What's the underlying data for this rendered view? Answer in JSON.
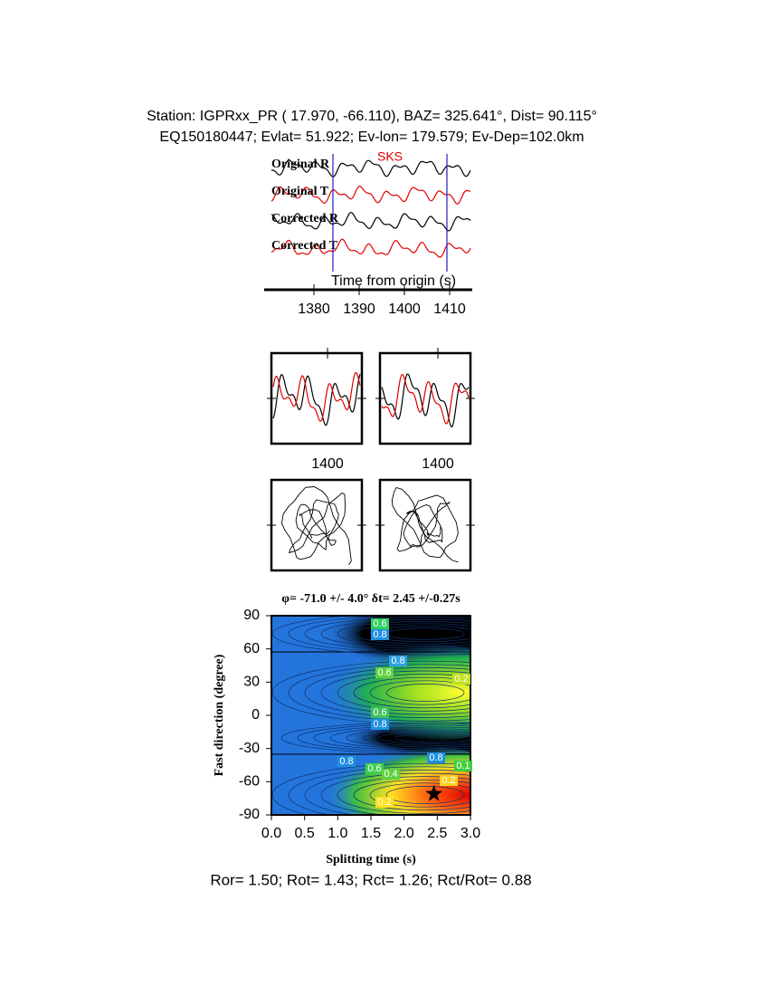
{
  "header": {
    "line1": "Station: IGPRxx_PR (  17.970,  -66.110), BAZ=  325.641°, Dist=   90.115°",
    "line2": "EQ150180447; Evlat=  51.922; Ev-lon= 179.579; Ev-Dep=102.0km"
  },
  "chart_data": [
    {
      "type": "waveform",
      "phase_label": "SKS",
      "trace_labels": [
        "Original R",
        "Original T",
        "Corrected R",
        "Corrected T"
      ],
      "x_label": "Time from origin (s)",
      "xlim": [
        1370.6,
        1414.6
      ],
      "xticks": [
        1380,
        1390,
        1400,
        1410
      ]
    },
    {
      "type": "waveform-window",
      "xlim": [
        1387.6,
        1407.6
      ],
      "xticks": [
        1400
      ]
    },
    {
      "type": "waveform-window",
      "xlim": [
        1387.2,
        1407.2
      ],
      "xticks": [
        1400
      ]
    },
    {
      "type": "contour",
      "title": "φ= -71.0 +/- 4.0° δt= 2.45 +/-0.27s",
      "x_label": "Splitting time (s)",
      "y_label": "Fast direction (degree)",
      "xlim": [
        0,
        3
      ],
      "ylim": [
        -90,
        90
      ],
      "xticks": [
        {
          "value": 0,
          "label": "0.0"
        },
        0.5,
        {
          "value": 1,
          "label": "1.0"
        },
        1.5,
        {
          "value": 2,
          "label": "2.0"
        },
        2.5,
        {
          "value": 3,
          "label": "3.0"
        }
      ],
      "yticks": [
        -90,
        -60,
        -30,
        0,
        30,
        60,
        90
      ],
      "contour_labels": [
        "0.6",
        "0.8",
        "0.8",
        "0.6",
        "0.2",
        "0.6",
        "0.8",
        "0.8",
        "0.8",
        "0.6",
        "0.4",
        "0.2",
        "0.1",
        "0.2"
      ],
      "best_fit": {
        "dt": 2.45,
        "phi": -71.0
      }
    }
  ],
  "footer": "Ror= 1.50; Rot= 1.43; Rct= 1.26; Rct/Rot= 0.88"
}
